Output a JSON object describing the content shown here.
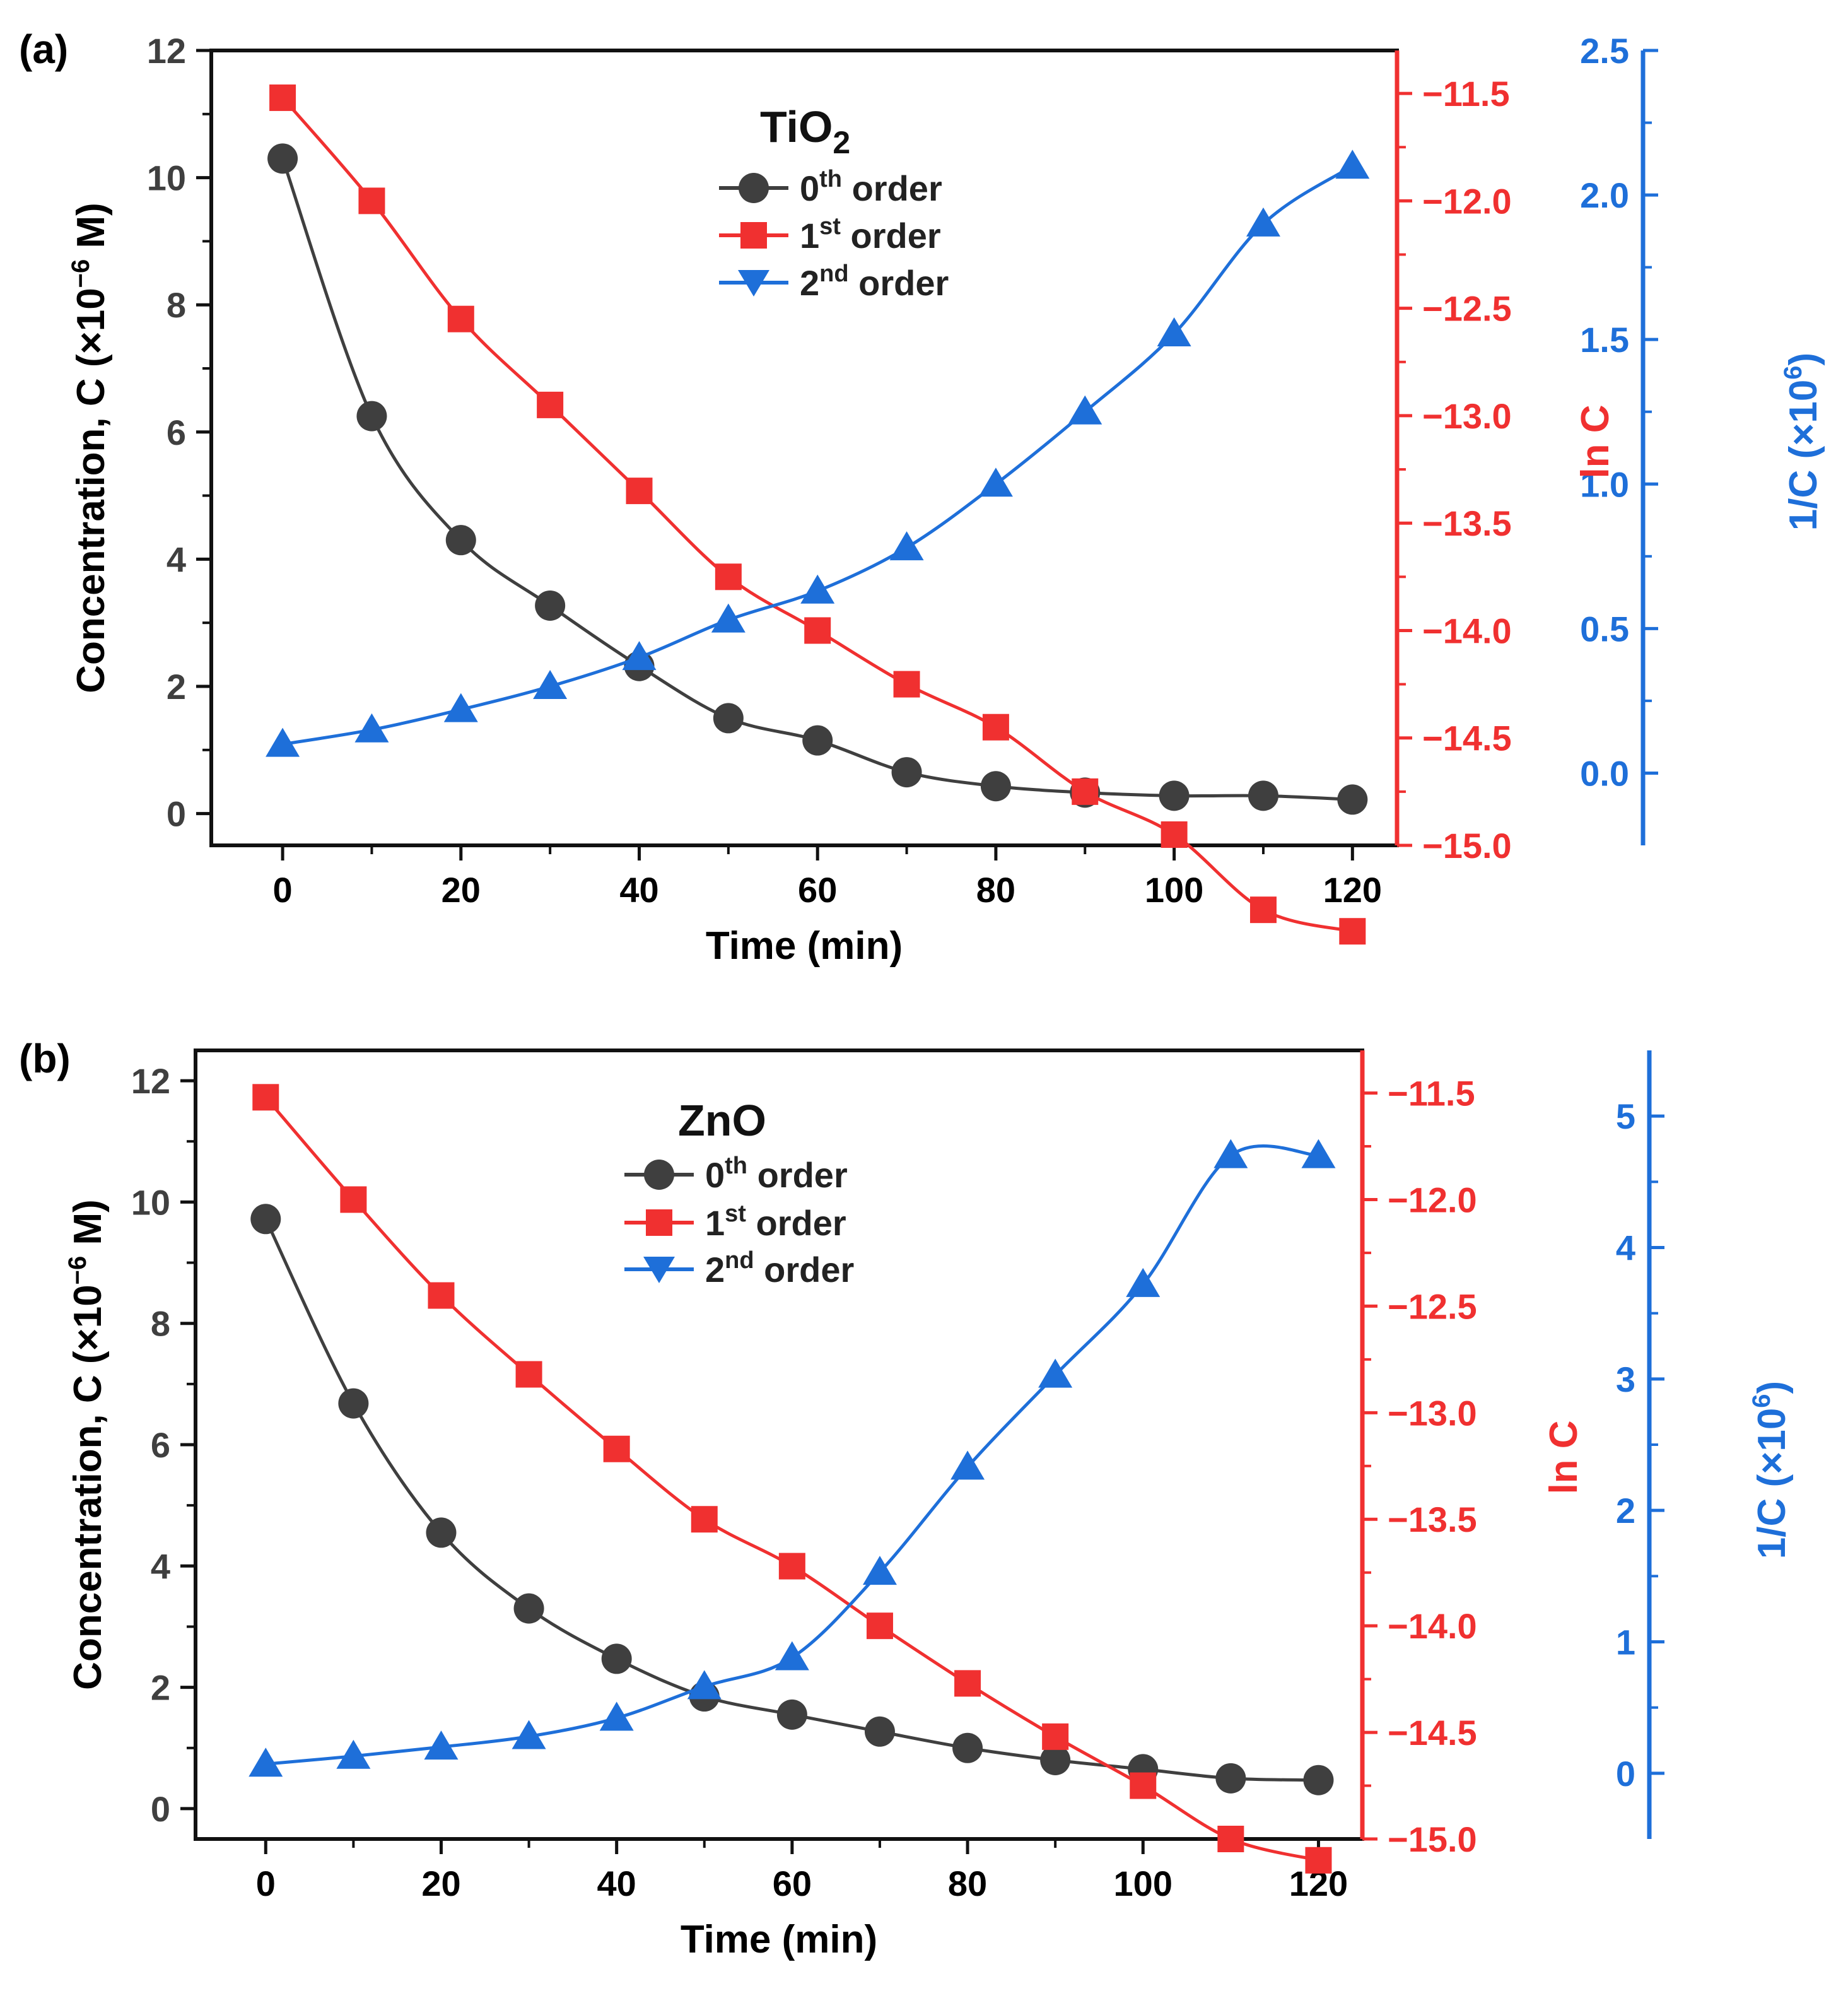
{
  "chart_data": [
    {
      "panel": "(a)",
      "type": "line",
      "title": "TiO",
      "title_subscript": "2",
      "xlabel": "Time (min)",
      "xlim": [
        -8,
        125
      ],
      "xticks": [
        0,
        20,
        40,
        60,
        80,
        100,
        120
      ],
      "x": [
        0,
        10,
        20,
        30,
        40,
        50,
        60,
        70,
        80,
        90,
        100,
        110,
        120
      ],
      "axes": {
        "left": {
          "label_main": "Concentration, C (×10",
          "label_sup": "−6",
          "label_tail": " M)",
          "ylim": [
            -0.5,
            12
          ],
          "ticks": [
            0,
            2,
            4,
            6,
            8,
            10,
            12
          ],
          "color": "#3f3f3f"
        },
        "right1": {
          "label": "ln C",
          "ylim": [
            -15.0,
            -11.3
          ],
          "ticks": [
            -15.0,
            -14.5,
            -14.0,
            -13.5,
            -13.0,
            -12.5,
            -12.0,
            -11.5
          ],
          "tick_labels": [
            "−15.0",
            "−14.5",
            "−14.0",
            "−13.5",
            "−13.0",
            "−12.5",
            "−12.0",
            "−11.5"
          ],
          "color": "#f03030"
        },
        "right2": {
          "label_main": "1/C (×10",
          "label_sup": "6",
          "label_tail": ")",
          "ylim": [
            -0.25,
            2.5
          ],
          "ticks": [
            0.0,
            0.5,
            1.0,
            1.5,
            2.0,
            2.5
          ],
          "tick_labels": [
            "0.0",
            "0.5",
            "1.0",
            "1.5",
            "2.0",
            "2.5"
          ],
          "color": "#1e6fd9"
        }
      },
      "series": [
        {
          "name": "0th order",
          "legend_main": "0",
          "legend_sup": "th",
          "legend_tail": " order",
          "axis": "left",
          "marker": "circle",
          "color": "#3f3f3f",
          "values": [
            10.3,
            6.25,
            4.3,
            3.27,
            2.32,
            1.5,
            1.15,
            0.65,
            0.43,
            0.33,
            0.28,
            0.28,
            0.22
          ]
        },
        {
          "name": "1st order",
          "legend_main": "1",
          "legend_sup": "st",
          "legend_tail": " order",
          "axis": "right1",
          "marker": "square",
          "color": "#f03030",
          "values": [
            -11.52,
            -12.0,
            -12.55,
            -12.95,
            -13.35,
            -13.75,
            -14.0,
            -14.25,
            -14.45,
            -14.75,
            -14.95,
            -15.3,
            -15.4
          ]
        },
        {
          "name": "2nd order",
          "legend_main": "2",
          "legend_sup": "nd",
          "legend_tail": " order",
          "axis": "right2",
          "marker": "triangle-up",
          "color": "#1e6fd9",
          "values": [
            0.1,
            0.15,
            0.22,
            0.3,
            0.4,
            0.53,
            0.63,
            0.78,
            1.0,
            1.25,
            1.52,
            1.9,
            2.1
          ]
        }
      ]
    },
    {
      "panel": "(b)",
      "type": "line",
      "title": "ZnO",
      "title_subscript": "",
      "xlabel": "Time (min)",
      "xlim": [
        -8,
        125
      ],
      "xticks": [
        0,
        20,
        40,
        60,
        80,
        100,
        120
      ],
      "x": [
        0,
        10,
        20,
        30,
        40,
        50,
        60,
        70,
        80,
        90,
        100,
        110,
        120
      ],
      "axes": {
        "left": {
          "label_main": "Concentration, C (×10",
          "label_sup": "−6",
          "label_tail": " M)",
          "ylim": [
            -0.5,
            12.5
          ],
          "ticks": [
            0,
            2,
            4,
            6,
            8,
            10,
            12
          ],
          "color": "#3f3f3f"
        },
        "right1": {
          "label": "ln C",
          "ylim": [
            -15.0,
            -11.3
          ],
          "ticks": [
            -15.0,
            -14.5,
            -14.0,
            -13.5,
            -13.0,
            -12.5,
            -12.0,
            -11.5
          ],
          "tick_labels": [
            "−15.0",
            "−14.5",
            "−14.0",
            "−13.5",
            "−13.0",
            "−12.5",
            "−12.0",
            "−11.5"
          ],
          "color": "#f03030"
        },
        "right2": {
          "label_main": "1/C (×10",
          "label_sup": "6",
          "label_tail": ")",
          "ylim": [
            -0.5,
            5.5
          ],
          "ticks": [
            0,
            1,
            2,
            3,
            4,
            5
          ],
          "tick_labels": [
            "0",
            "1",
            "2",
            "3",
            "4",
            "5"
          ],
          "color": "#1e6fd9"
        }
      },
      "series": [
        {
          "name": "0th order",
          "legend_main": "0",
          "legend_sup": "th",
          "legend_tail": " order",
          "axis": "left",
          "marker": "circle",
          "color": "#3f3f3f",
          "values": [
            9.72,
            6.68,
            4.55,
            3.3,
            2.47,
            1.85,
            1.55,
            1.27,
            1.0,
            0.8,
            0.65,
            0.5,
            0.47
          ]
        },
        {
          "name": "1st order",
          "legend_main": "1",
          "legend_sup": "st",
          "legend_tail": " order",
          "axis": "right1",
          "marker": "square",
          "color": "#f03030",
          "values": [
            -11.52,
            -12.0,
            -12.45,
            -12.82,
            -13.17,
            -13.5,
            -13.72,
            -14.0,
            -14.27,
            -14.52,
            -14.75,
            -15.0,
            -15.1
          ]
        },
        {
          "name": "2nd order",
          "legend_main": "2",
          "legend_sup": "nd",
          "legend_tail": " order",
          "axis": "right2",
          "marker": "triangle-up",
          "color": "#1e6fd9",
          "values": [
            0.07,
            0.13,
            0.2,
            0.28,
            0.42,
            0.66,
            0.88,
            1.53,
            2.33,
            3.03,
            3.72,
            4.7,
            4.7
          ]
        }
      ]
    }
  ]
}
